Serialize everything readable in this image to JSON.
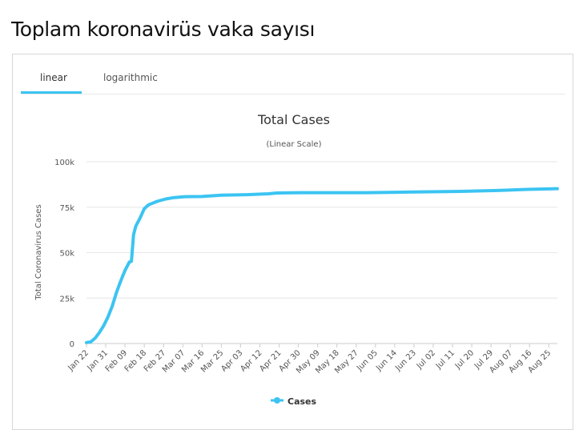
{
  "page": {
    "title": "Toplam koronavirüs vaka sayısı"
  },
  "tabs": [
    {
      "label": "linear",
      "active": true
    },
    {
      "label": "logarithmic",
      "active": false
    }
  ],
  "colors": {
    "accent": "#3bc4f2",
    "series": "#3bc4f2"
  },
  "chart_data": {
    "type": "line",
    "title": "Total Cases",
    "subtitle": "(Linear Scale)",
    "ylabel": "Total Coronavirus Cases",
    "xlabel": "",
    "ylim": [
      0,
      100000
    ],
    "yticks": [
      0,
      25000,
      50000,
      75000,
      100000
    ],
    "ytick_labels": [
      "0",
      "25k",
      "50k",
      "75k",
      "100k"
    ],
    "xtick_labels": [
      "Jan 22",
      "Jan 31",
      "Feb 09",
      "Feb 18",
      "Feb 27",
      "Mar 07",
      "Mar 16",
      "Mar 25",
      "Apr 03",
      "Apr 12",
      "Apr 21",
      "Apr 30",
      "May 09",
      "May 18",
      "May 27",
      "Jun 05",
      "Jun 14",
      "Jun 23",
      "Jul 02",
      "Jul 11",
      "Jul 20",
      "Jul 29",
      "Aug 07",
      "Aug 16",
      "Aug 25"
    ],
    "x_start": "Jan 22",
    "x_end": "Aug 29",
    "grid": true,
    "legend": "bottom",
    "series": [
      {
        "name": "Cases",
        "x": [
          "Jan 22",
          "Jan 24",
          "Jan 26",
          "Jan 28",
          "Jan 30",
          "Feb 01",
          "Feb 03",
          "Feb 05",
          "Feb 07",
          "Feb 09",
          "Feb 11",
          "Feb 12",
          "Feb 13",
          "Feb 14",
          "Feb 16",
          "Feb 18",
          "Feb 20",
          "Feb 24",
          "Feb 28",
          "Mar 03",
          "Mar 08",
          "Mar 16",
          "Mar 25",
          "Apr 06",
          "Apr 16",
          "Apr 20",
          "May 01",
          "Jun 01",
          "Jun 15",
          "Jul 01",
          "Jul 15",
          "Aug 01",
          "Aug 15",
          "Aug 29"
        ],
        "y": [
          550,
          900,
          2900,
          6000,
          9800,
          14500,
          20500,
          28000,
          34500,
          40200,
          44800,
          45200,
          59900,
          64500,
          69000,
          74200,
          76300,
          78200,
          79500,
          80300,
          80800,
          80900,
          81600,
          81900,
          82400,
          82800,
          83000,
          83000,
          83200,
          83500,
          83700,
          84200,
          84800,
          85200
        ]
      }
    ]
  }
}
